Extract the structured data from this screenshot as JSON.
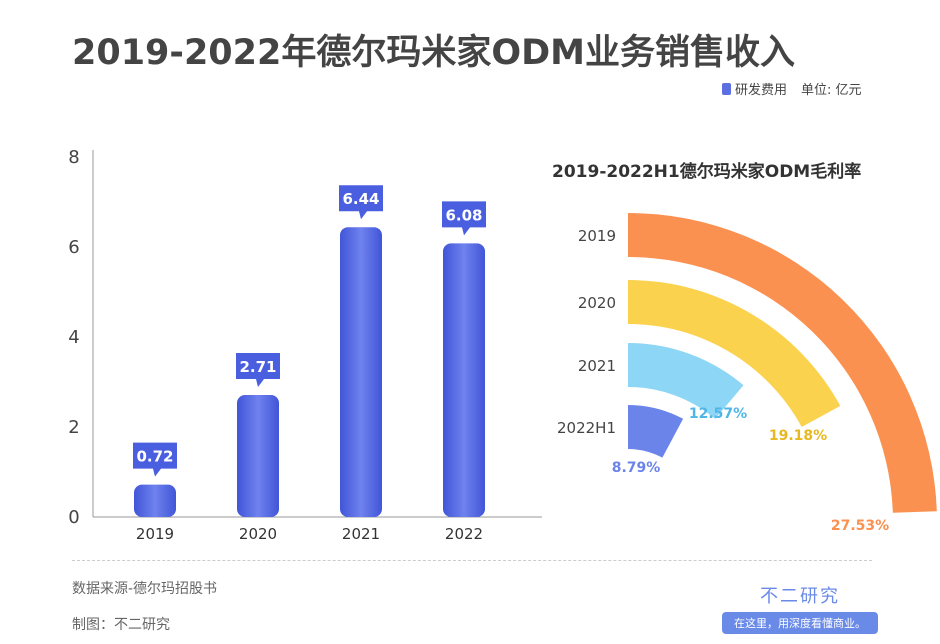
{
  "title": "2019-2022年德尔玛米家ODM业务销售收入",
  "legend": {
    "series": "研发费用",
    "unit": "单位: 亿元"
  },
  "footer": {
    "source": "数据来源-德尔玛招股书",
    "maker": "制图：不二研究"
  },
  "brand": {
    "name": "不二研究",
    "slogan": "在这里，用深度看懂商业。"
  },
  "chart_data": [
    {
      "type": "bar",
      "categories": [
        "2019",
        "2020",
        "2021",
        "2022"
      ],
      "values": [
        0.72,
        2.71,
        6.44,
        6.08
      ],
      "ylim": [
        0,
        8
      ],
      "yticks": [
        "0",
        "2",
        "4",
        "6",
        "8"
      ],
      "color": "#5468e0",
      "series_name": "研发费用"
    },
    {
      "type": "radial-bar",
      "title": "2019-2022H1德尔玛米家ODM毛利率",
      "categories": [
        "2019",
        "2020",
        "2021",
        "2022H1"
      ],
      "values": [
        27.53,
        19.18,
        12.57,
        8.79
      ],
      "labels": [
        "27.53%",
        "19.18%",
        "12.57%",
        "8.79%"
      ],
      "colors": [
        "#fb9150",
        "#fbd24e",
        "#8ed6f5",
        "#6a84ea"
      ]
    }
  ]
}
